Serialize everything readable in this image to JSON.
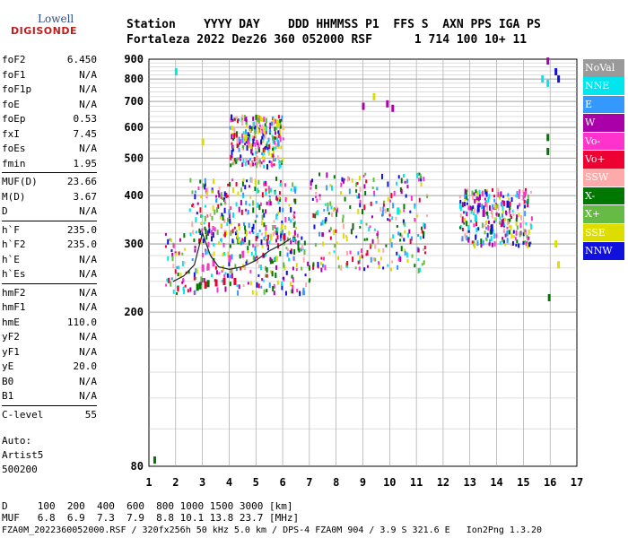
{
  "logo": {
    "line1": "Lowell",
    "line2": "DIGISONDE"
  },
  "header": {
    "line1": "Station    YYYY DAY    DDD HHMMSS P1  FFS S  AXN PPS IGA PS",
    "line2": "Fortaleza 2022 Dez26 360 052000 RSF      1 714 100 10+ 11"
  },
  "params": [
    {
      "name": "foF2",
      "value": "6.450"
    },
    {
      "name": "foF1",
      "value": "N/A"
    },
    {
      "name": "foF1p",
      "value": "N/A"
    },
    {
      "name": "foE",
      "value": "N/A"
    },
    {
      "name": "foEp",
      "value": "0.53"
    },
    {
      "name": "fxI",
      "value": "7.45"
    },
    {
      "name": "foEs",
      "value": "N/A"
    },
    {
      "name": "fmin",
      "value": "1.95"
    },
    {
      "name": "MUF(D)",
      "value": "23.66"
    },
    {
      "name": "M(D)",
      "value": "3.67"
    },
    {
      "name": "D",
      "value": "N/A"
    },
    {
      "name": "h`F",
      "value": "235.0"
    },
    {
      "name": "h`F2",
      "value": "235.0"
    },
    {
      "name": "h`E",
      "value": "N/A"
    },
    {
      "name": "h`Es",
      "value": "N/A"
    },
    {
      "name": "hmF2",
      "value": "N/A"
    },
    {
      "name": "hmF1",
      "value": "N/A"
    },
    {
      "name": "hmE",
      "value": "110.0"
    },
    {
      "name": "yF2",
      "value": "N/A"
    },
    {
      "name": "yF1",
      "value": "N/A"
    },
    {
      "name": "yE",
      "value": "20.0"
    },
    {
      "name": "B0",
      "value": "N/A"
    },
    {
      "name": "B1",
      "value": "N/A"
    },
    {
      "name": "C-level",
      "value": "55"
    }
  ],
  "auto": {
    "line1": "Auto:",
    "line2": "Artist5",
    "line3": "500200"
  },
  "bottom": {
    "d_row": "D     100  200  400  600  800 1000 1500 3000 [km]",
    "muf_row": "MUF   6.8  6.9  7.3  7.9  8.8 10.1 13.8 23.7 [MHz]",
    "footer": "FZA0M_2022360052000.RSF / 320fx256h 50 kHz 5.0 km / DPS-4 FZA0M 904 / 3.9 S 321.6 E   Ion2Png 1.3.20"
  },
  "legend": [
    {
      "label": "NoVal",
      "color": "#9a9a9a"
    },
    {
      "label": "NNE",
      "color": "#00e5ee"
    },
    {
      "label": "E",
      "color": "#3399ff"
    },
    {
      "label": "W",
      "color": "#aa00aa"
    },
    {
      "label": "Vo-",
      "color": "#ff33cc"
    },
    {
      "label": "Vo+",
      "color": "#ee0033"
    },
    {
      "label": "SSW",
      "color": "#ffaaaa"
    },
    {
      "label": "X-",
      "color": "#007700"
    },
    {
      "label": "X+",
      "color": "#66bb44"
    },
    {
      "label": "SSE",
      "color": "#dddd00"
    },
    {
      "label": "NNW",
      "color": "#1111dd"
    }
  ],
  "chart_data": {
    "type": "scatter",
    "title": "",
    "xlabel": "",
    "ylabel": "",
    "xlim": [
      1,
      17
    ],
    "ylim": [
      80,
      900
    ],
    "y_scale": "log",
    "x_ticks": [
      1,
      2,
      3,
      4,
      5,
      6,
      7,
      8,
      9,
      10,
      11,
      12,
      13,
      14,
      15,
      16,
      17
    ],
    "y_ticks": [
      80,
      200,
      300,
      400,
      500,
      600,
      700,
      800,
      900
    ],
    "grid": true,
    "legend_position": "right",
    "trace_color": "#222222",
    "trace": {
      "x": [
        1.9,
        2.3,
        2.7,
        3.0,
        3.3,
        3.6,
        4.0,
        4.5,
        5.0,
        5.5,
        6.0,
        6.3
      ],
      "y": [
        240,
        248,
        265,
        320,
        280,
        262,
        258,
        262,
        272,
        288,
        300,
        310
      ]
    },
    "markers": [
      {
        "label": "Vo-",
        "points": [
          [
            3.0,
            260
          ],
          [
            3.2,
            262
          ],
          [
            3.4,
            268
          ],
          [
            4.0,
            275
          ],
          [
            4.5,
            282
          ]
        ]
      },
      {
        "label": "Vo+",
        "points": [
          [
            3.1,
            235
          ],
          [
            3.5,
            238
          ],
          [
            3.8,
            240
          ],
          [
            4.2,
            240
          ]
        ]
      },
      {
        "label": "X-",
        "points": [
          [
            1.2,
            83
          ],
          [
            2.8,
            232
          ],
          [
            2.9,
            234
          ],
          [
            3.2,
            237
          ],
          [
            15.9,
            565
          ],
          [
            15.9,
            520
          ],
          [
            15.95,
            218
          ]
        ]
      },
      {
        "label": "W",
        "points": [
          [
            15.9,
            890
          ],
          [
            9.0,
            680
          ],
          [
            9.9,
            690
          ],
          [
            10.1,
            672
          ],
          [
            13.5,
            360
          ],
          [
            14.2,
            340
          ]
        ]
      },
      {
        "label": "NNE",
        "points": [
          [
            2.0,
            835
          ],
          [
            15.7,
            800
          ],
          [
            15.9,
            780
          ],
          [
            10.3,
            365
          ],
          [
            13.2,
            350
          ]
        ]
      },
      {
        "label": "NNW",
        "points": [
          [
            16.2,
            835
          ],
          [
            16.3,
            800
          ],
          [
            13.3,
            370
          ],
          [
            13.8,
            330
          ],
          [
            14.4,
            380
          ]
        ]
      },
      {
        "label": "SSE",
        "points": [
          [
            3.0,
            550
          ],
          [
            4.6,
            565
          ],
          [
            5.3,
            590
          ],
          [
            5.8,
            615
          ],
          [
            9.4,
            720
          ],
          [
            16.2,
            300
          ],
          [
            16.3,
            265
          ]
        ]
      }
    ],
    "echo_regions": [
      {
        "x": [
          1.6,
          7.0
        ],
        "y": [
          225,
          330
        ]
      },
      {
        "x": [
          2.5,
          6.5
        ],
        "y": [
          300,
          450
        ]
      },
      {
        "x": [
          7.0,
          11.4
        ],
        "y": [
          260,
          460
        ]
      },
      {
        "x": [
          12.6,
          15.3
        ],
        "y": [
          300,
          420
        ]
      },
      {
        "x": [
          4.0,
          6.0
        ],
        "y": [
          480,
          650
        ]
      }
    ]
  }
}
